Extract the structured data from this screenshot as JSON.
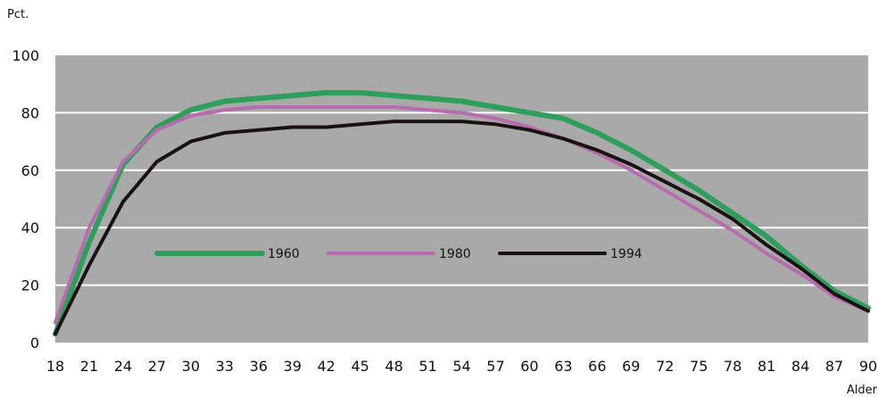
{
  "chart_data": {
    "type": "line",
    "title": "",
    "ylabel": "Pct.",
    "xlabel": "Alder",
    "xlim": [
      18,
      90
    ],
    "ylim": [
      0,
      100
    ],
    "x_ticks": [
      18,
      21,
      24,
      27,
      30,
      33,
      36,
      39,
      42,
      45,
      48,
      51,
      54,
      57,
      60,
      63,
      66,
      69,
      72,
      75,
      78,
      81,
      84,
      87,
      90
    ],
    "y_ticks": [
      0,
      20,
      40,
      60,
      80,
      100
    ],
    "grid": "horizontal",
    "legend_position": "center-left, inside plot",
    "colors": {
      "plot_background": "#a9a9a9",
      "grid": "#ffffff"
    },
    "x": [
      18,
      21,
      24,
      27,
      30,
      33,
      36,
      39,
      42,
      45,
      48,
      51,
      54,
      57,
      60,
      63,
      66,
      69,
      72,
      75,
      78,
      81,
      84,
      87,
      90
    ],
    "series": [
      {
        "name": "1960",
        "color": "#2e9e5b",
        "values": [
          3,
          35,
          62,
          75,
          81,
          84,
          85,
          86,
          87,
          87,
          86,
          85,
          84,
          82,
          80,
          78,
          73,
          67,
          60,
          53,
          45,
          37,
          27,
          18,
          12
        ]
      },
      {
        "name": "1980",
        "color": "#b86cb0",
        "values": [
          7,
          40,
          63,
          74,
          79,
          81,
          82,
          82,
          82,
          82,
          82,
          81,
          80,
          78,
          75,
          71,
          66,
          60,
          53,
          46,
          39,
          31,
          24,
          16,
          11
        ]
      },
      {
        "name": "1994",
        "color": "#1a1212",
        "values": [
          3,
          27,
          49,
          63,
          70,
          73,
          74,
          75,
          75,
          76,
          77,
          77,
          77,
          76,
          74,
          71,
          67,
          62,
          56,
          50,
          43,
          34,
          26,
          17,
          11
        ]
      }
    ]
  }
}
